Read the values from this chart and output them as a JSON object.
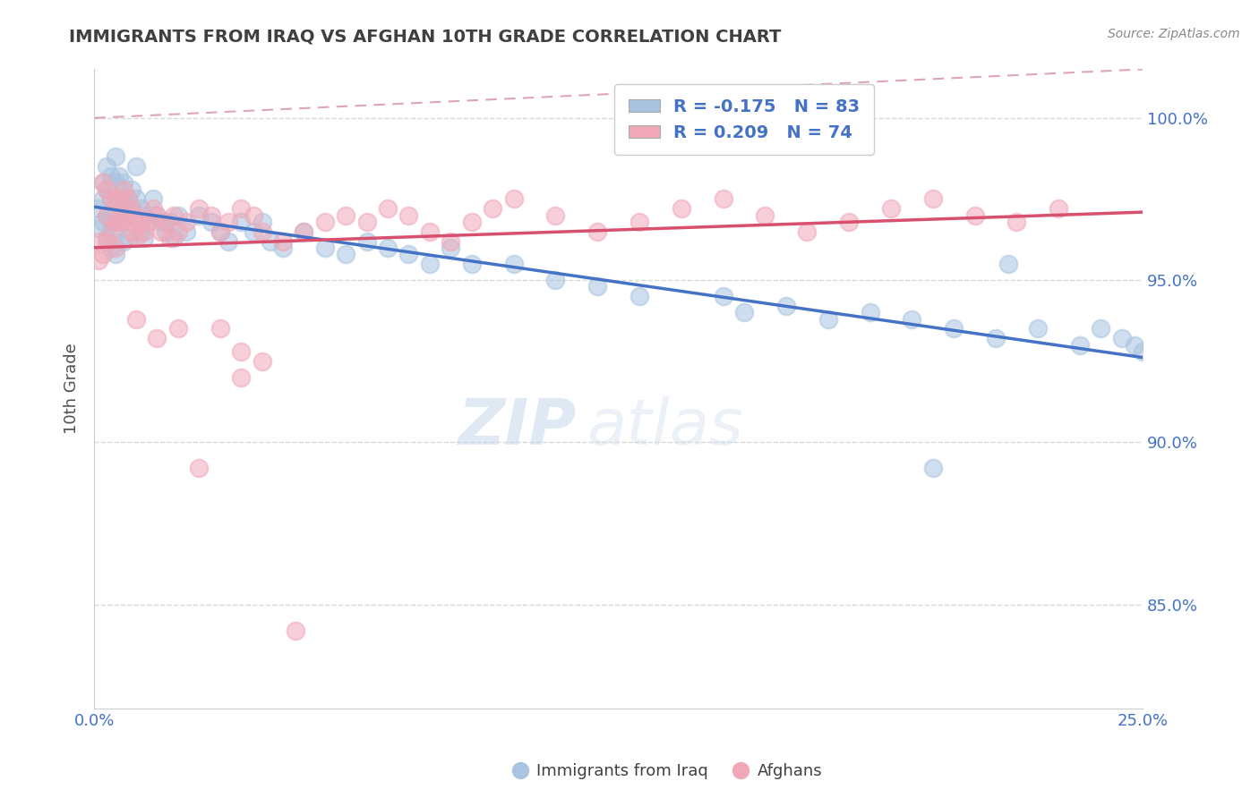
{
  "title": "IMMIGRANTS FROM IRAQ VS AFGHAN 10TH GRADE CORRELATION CHART",
  "source": "Source: ZipAtlas.com",
  "ylabel": "10th Grade",
  "xlim": [
    0.0,
    0.25
  ],
  "ylim": [
    0.818,
    1.015
  ],
  "yticks": [
    0.85,
    0.9,
    0.95,
    1.0
  ],
  "ytick_labels": [
    "85.0%",
    "90.0%",
    "95.0%",
    "100.0%"
  ],
  "iraq_R": -0.175,
  "iraq_N": 83,
  "afghan_R": 0.209,
  "afghan_N": 74,
  "iraq_color": "#a8c4e0",
  "afghan_color": "#f0a8b8",
  "iraq_line_color": "#4472c4",
  "afghan_line_color": "#d94f6e",
  "ref_line_color": "#d08090",
  "background_color": "#ffffff",
  "grid_color": "#d8d8d8",
  "title_color": "#404040",
  "legend_text_color": "#4472c4",
  "watermark_zip": "ZIP",
  "watermark_atlas": "atlas",
  "iraq_x": [
    0.001,
    0.001,
    0.002,
    0.002,
    0.002,
    0.003,
    0.003,
    0.003,
    0.003,
    0.004,
    0.004,
    0.004,
    0.004,
    0.005,
    0.005,
    0.005,
    0.005,
    0.005,
    0.006,
    0.006,
    0.006,
    0.007,
    0.007,
    0.007,
    0.007,
    0.008,
    0.008,
    0.008,
    0.009,
    0.009,
    0.01,
    0.01,
    0.011,
    0.011,
    0.012,
    0.012,
    0.013,
    0.014,
    0.015,
    0.016,
    0.017,
    0.018,
    0.019,
    0.02,
    0.022,
    0.025,
    0.028,
    0.03,
    0.032,
    0.035,
    0.038,
    0.04,
    0.042,
    0.045,
    0.05,
    0.055,
    0.06,
    0.065,
    0.07,
    0.075,
    0.08,
    0.085,
    0.09,
    0.1,
    0.11,
    0.12,
    0.13,
    0.15,
    0.155,
    0.165,
    0.175,
    0.185,
    0.195,
    0.205,
    0.215,
    0.225,
    0.235,
    0.24,
    0.245,
    0.248,
    0.25,
    0.218,
    0.2
  ],
  "iraq_y": [
    0.972,
    0.966,
    0.98,
    0.975,
    0.968,
    0.985,
    0.978,
    0.97,
    0.963,
    0.982,
    0.975,
    0.968,
    0.96,
    0.988,
    0.98,
    0.972,
    0.965,
    0.958,
    0.982,
    0.975,
    0.968,
    0.98,
    0.975,
    0.968,
    0.962,
    0.975,
    0.97,
    0.963,
    0.978,
    0.972,
    0.985,
    0.975,
    0.972,
    0.965,
    0.97,
    0.963,
    0.968,
    0.975,
    0.97,
    0.968,
    0.965,
    0.968,
    0.963,
    0.97,
    0.965,
    0.97,
    0.968,
    0.965,
    0.962,
    0.968,
    0.965,
    0.968,
    0.962,
    0.96,
    0.965,
    0.96,
    0.958,
    0.962,
    0.96,
    0.958,
    0.955,
    0.96,
    0.955,
    0.955,
    0.95,
    0.948,
    0.945,
    0.945,
    0.94,
    0.942,
    0.938,
    0.94,
    0.938,
    0.935,
    0.932,
    0.935,
    0.93,
    0.935,
    0.932,
    0.93,
    0.928,
    0.955,
    0.892
  ],
  "afghan_x": [
    0.001,
    0.001,
    0.002,
    0.002,
    0.003,
    0.003,
    0.003,
    0.004,
    0.004,
    0.005,
    0.005,
    0.005,
    0.006,
    0.006,
    0.007,
    0.007,
    0.008,
    0.008,
    0.009,
    0.009,
    0.01,
    0.01,
    0.011,
    0.012,
    0.013,
    0.014,
    0.015,
    0.016,
    0.017,
    0.018,
    0.019,
    0.02,
    0.022,
    0.025,
    0.028,
    0.03,
    0.032,
    0.035,
    0.038,
    0.04,
    0.045,
    0.05,
    0.055,
    0.06,
    0.065,
    0.07,
    0.075,
    0.08,
    0.085,
    0.09,
    0.095,
    0.1,
    0.11,
    0.12,
    0.13,
    0.14,
    0.15,
    0.16,
    0.17,
    0.18,
    0.19,
    0.2,
    0.21,
    0.22,
    0.23,
    0.01,
    0.015,
    0.02,
    0.025,
    0.03,
    0.035,
    0.04,
    0.048,
    0.035
  ],
  "afghan_y": [
    0.962,
    0.956,
    0.98,
    0.958,
    0.978,
    0.97,
    0.962,
    0.975,
    0.965,
    0.975,
    0.968,
    0.96,
    0.975,
    0.968,
    0.978,
    0.97,
    0.975,
    0.968,
    0.972,
    0.965,
    0.97,
    0.963,
    0.968,
    0.965,
    0.968,
    0.972,
    0.97,
    0.965,
    0.968,
    0.963,
    0.97,
    0.965,
    0.968,
    0.972,
    0.97,
    0.965,
    0.968,
    0.972,
    0.97,
    0.965,
    0.962,
    0.965,
    0.968,
    0.97,
    0.968,
    0.972,
    0.97,
    0.965,
    0.962,
    0.968,
    0.972,
    0.975,
    0.97,
    0.965,
    0.968,
    0.972,
    0.975,
    0.97,
    0.965,
    0.968,
    0.972,
    0.975,
    0.97,
    0.968,
    0.972,
    0.938,
    0.932,
    0.935,
    0.892,
    0.935,
    0.928,
    0.925,
    0.842,
    0.92
  ]
}
